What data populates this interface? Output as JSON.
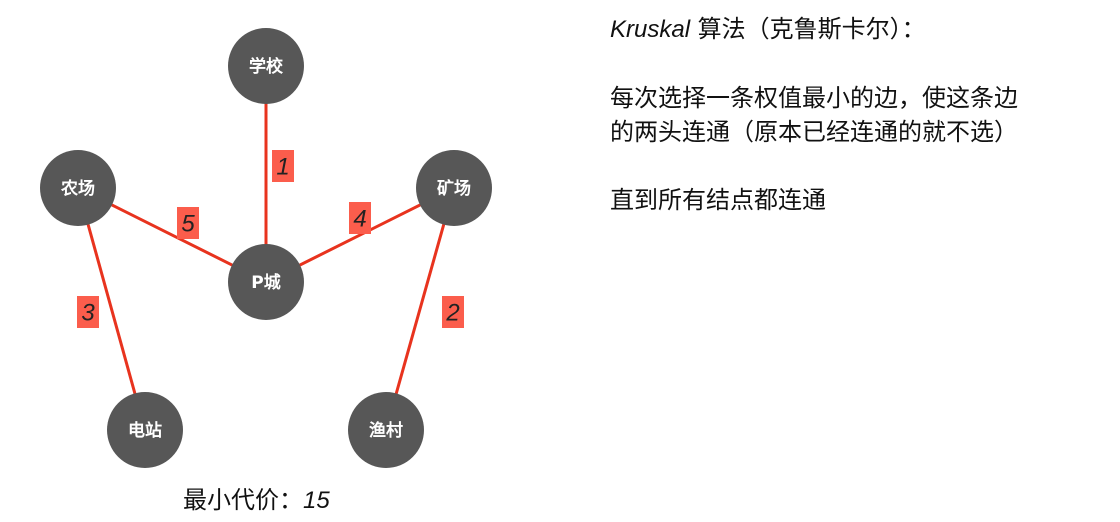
{
  "colors": {
    "node": "#575757",
    "edge": "#e8331e",
    "weight_box": "#fb5d4c"
  },
  "graph": {
    "nodes": [
      {
        "id": "school",
        "label": "学校"
      },
      {
        "id": "farm",
        "label": "农场"
      },
      {
        "id": "mine",
        "label": "矿场"
      },
      {
        "id": "city",
        "label": "P城"
      },
      {
        "id": "power",
        "label": "电站"
      },
      {
        "id": "village",
        "label": "渔村"
      }
    ],
    "edges": [
      {
        "from": "school",
        "to": "city",
        "weight": "1"
      },
      {
        "from": "mine",
        "to": "village",
        "weight": "2"
      },
      {
        "from": "farm",
        "to": "power",
        "weight": "3"
      },
      {
        "from": "mine",
        "to": "city",
        "weight": "4"
      },
      {
        "from": "farm",
        "to": "city",
        "weight": "5"
      }
    ]
  },
  "cost": {
    "label": "最小代价：",
    "value": "15"
  },
  "description": {
    "title_en": "Kruskal",
    "title_zh": " 算法（克鲁斯卡尔）：",
    "paragraph1": "每次选择一条权值最小的边，使这条边的两头连通（原本已经连通的就不选）",
    "paragraph2": "直到所有结点都连通"
  }
}
